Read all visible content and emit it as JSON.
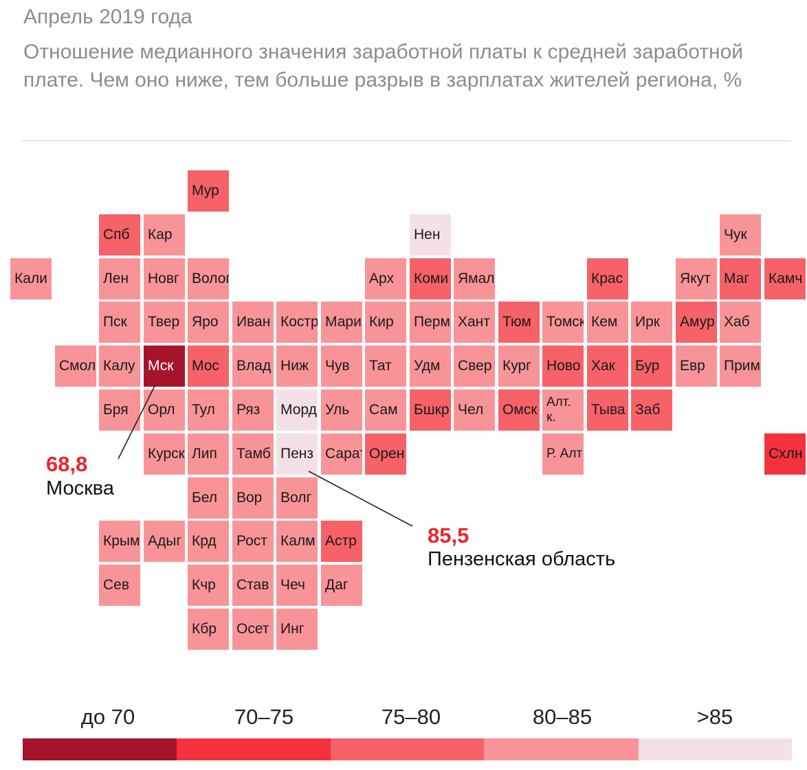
{
  "header": {
    "supertitle": "Апрель 2019 года",
    "subtitle": "Отношение медианного значения заработной платы к средней заработной плате. Чем оно ниже, тем больше разрыв в зарплатах жителей региона, %"
  },
  "colors": {
    "do70": "#a8132c",
    "r70_75": "#f5323c",
    "r75_80": "#f66268",
    "r80_85": "#f89498",
    "gt85": "#f4e1e6"
  },
  "map": {
    "regions": [
      {
        "label": "Мур",
        "col": 4,
        "row": 0,
        "cls": "r75_80"
      },
      {
        "label": "Спб",
        "col": 2,
        "row": 1,
        "cls": "r75_80"
      },
      {
        "label": "Кар",
        "col": 3,
        "row": 1,
        "cls": "r80_85"
      },
      {
        "label": "Нен",
        "col": 9,
        "row": 1,
        "cls": "gt85"
      },
      {
        "label": "Чук",
        "col": 16,
        "row": 1,
        "cls": "r80_85"
      },
      {
        "label": "Кали",
        "col": 0,
        "row": 2,
        "cls": "r80_85"
      },
      {
        "label": "Лен",
        "col": 2,
        "row": 2,
        "cls": "r80_85"
      },
      {
        "label": "Новг",
        "col": 3,
        "row": 2,
        "cls": "r80_85"
      },
      {
        "label": "Волог",
        "col": 4,
        "row": 2,
        "cls": "r80_85"
      },
      {
        "label": "Арх",
        "col": 8,
        "row": 2,
        "cls": "r80_85"
      },
      {
        "label": "Коми",
        "col": 9,
        "row": 2,
        "cls": "r75_80"
      },
      {
        "label": "Ямал",
        "col": 10,
        "row": 2,
        "cls": "r80_85"
      },
      {
        "label": "Крас",
        "col": 13,
        "row": 2,
        "cls": "r75_80"
      },
      {
        "label": "Якут",
        "col": 15,
        "row": 2,
        "cls": "r80_85"
      },
      {
        "label": "Маг",
        "col": 16,
        "row": 2,
        "cls": "r75_80"
      },
      {
        "label": "Камч",
        "col": 17,
        "row": 2,
        "cls": "r75_80"
      },
      {
        "label": "Пск",
        "col": 2,
        "row": 3,
        "cls": "r80_85"
      },
      {
        "label": "Твер",
        "col": 3,
        "row": 3,
        "cls": "r80_85"
      },
      {
        "label": "Яро",
        "col": 4,
        "row": 3,
        "cls": "r80_85"
      },
      {
        "label": "Иван",
        "col": 5,
        "row": 3,
        "cls": "r80_85"
      },
      {
        "label": "Костр",
        "col": 6,
        "row": 3,
        "cls": "r80_85"
      },
      {
        "label": "Мари",
        "col": 7,
        "row": 3,
        "cls": "r80_85"
      },
      {
        "label": "Кир",
        "col": 8,
        "row": 3,
        "cls": "r80_85"
      },
      {
        "label": "Перм",
        "col": 9,
        "row": 3,
        "cls": "r80_85"
      },
      {
        "label": "Хант",
        "col": 10,
        "row": 3,
        "cls": "r80_85"
      },
      {
        "label": "Тюм",
        "col": 11,
        "row": 3,
        "cls": "r75_80"
      },
      {
        "label": "Томск",
        "col": 12,
        "row": 3,
        "cls": "r80_85"
      },
      {
        "label": "Кем",
        "col": 13,
        "row": 3,
        "cls": "r80_85"
      },
      {
        "label": "Ирк",
        "col": 14,
        "row": 3,
        "cls": "r80_85"
      },
      {
        "label": "Амур",
        "col": 15,
        "row": 3,
        "cls": "r75_80"
      },
      {
        "label": "Хаб",
        "col": 16,
        "row": 3,
        "cls": "r80_85"
      },
      {
        "label": "Смол",
        "col": 1,
        "row": 4,
        "cls": "r80_85"
      },
      {
        "label": "Калу",
        "col": 2,
        "row": 4,
        "cls": "r80_85"
      },
      {
        "label": "Мск",
        "col": 3,
        "row": 4,
        "cls": "do70"
      },
      {
        "label": "Мос",
        "col": 4,
        "row": 4,
        "cls": "r75_80"
      },
      {
        "label": "Влад",
        "col": 5,
        "row": 4,
        "cls": "r80_85"
      },
      {
        "label": "Ниж",
        "col": 6,
        "row": 4,
        "cls": "r80_85"
      },
      {
        "label": "Чув",
        "col": 7,
        "row": 4,
        "cls": "r80_85"
      },
      {
        "label": "Тат",
        "col": 8,
        "row": 4,
        "cls": "r80_85"
      },
      {
        "label": "Удм",
        "col": 9,
        "row": 4,
        "cls": "r80_85"
      },
      {
        "label": "Свер",
        "col": 10,
        "row": 4,
        "cls": "r80_85"
      },
      {
        "label": "Кург",
        "col": 11,
        "row": 4,
        "cls": "r80_85"
      },
      {
        "label": "Ново",
        "col": 12,
        "row": 4,
        "cls": "r75_80"
      },
      {
        "label": "Хак",
        "col": 13,
        "row": 4,
        "cls": "r75_80"
      },
      {
        "label": "Бур",
        "col": 14,
        "row": 4,
        "cls": "r75_80"
      },
      {
        "label": "Евр",
        "col": 15,
        "row": 4,
        "cls": "r80_85"
      },
      {
        "label": "Прим",
        "col": 16,
        "row": 4,
        "cls": "r80_85"
      },
      {
        "label": "Бря",
        "col": 2,
        "row": 5,
        "cls": "r80_85"
      },
      {
        "label": "Орл",
        "col": 3,
        "row": 5,
        "cls": "r80_85"
      },
      {
        "label": "Тул",
        "col": 4,
        "row": 5,
        "cls": "r80_85"
      },
      {
        "label": "Ряз",
        "col": 5,
        "row": 5,
        "cls": "r80_85"
      },
      {
        "label": "Морд",
        "col": 6,
        "row": 5,
        "cls": "gt85"
      },
      {
        "label": "Уль",
        "col": 7,
        "row": 5,
        "cls": "r80_85"
      },
      {
        "label": "Сам",
        "col": 8,
        "row": 5,
        "cls": "r80_85"
      },
      {
        "label": "Бшкр",
        "col": 9,
        "row": 5,
        "cls": "r75_80"
      },
      {
        "label": "Чел",
        "col": 10,
        "row": 5,
        "cls": "r80_85"
      },
      {
        "label": "Омск",
        "col": 11,
        "row": 5,
        "cls": "r75_80"
      },
      {
        "label": "Алт. к.",
        "col": 12,
        "row": 5,
        "cls": "r80_85",
        "small": true
      },
      {
        "label": "Тыва",
        "col": 13,
        "row": 5,
        "cls": "r75_80"
      },
      {
        "label": "Заб",
        "col": 14,
        "row": 5,
        "cls": "r75_80"
      },
      {
        "label": "Курск",
        "col": 3,
        "row": 6,
        "cls": "r80_85"
      },
      {
        "label": "Лип",
        "col": 4,
        "row": 6,
        "cls": "r80_85"
      },
      {
        "label": "Тамб",
        "col": 5,
        "row": 6,
        "cls": "r80_85"
      },
      {
        "label": "Пенз",
        "col": 6,
        "row": 6,
        "cls": "gt85"
      },
      {
        "label": "Сарат",
        "col": 7,
        "row": 6,
        "cls": "r80_85"
      },
      {
        "label": "Орен",
        "col": 8,
        "row": 6,
        "cls": "r75_80"
      },
      {
        "label": "Р. Алт",
        "col": 12,
        "row": 6,
        "cls": "r80_85",
        "small": true
      },
      {
        "label": "Схлн",
        "col": 17,
        "row": 6,
        "cls": "r70_75"
      },
      {
        "label": "Бел",
        "col": 4,
        "row": 7,
        "cls": "r80_85"
      },
      {
        "label": "Вор",
        "col": 5,
        "row": 7,
        "cls": "r80_85"
      },
      {
        "label": "Волг",
        "col": 6,
        "row": 7,
        "cls": "r80_85"
      },
      {
        "label": "Крым",
        "col": 2,
        "row": 8,
        "cls": "r80_85"
      },
      {
        "label": "Адыг",
        "col": 3,
        "row": 8,
        "cls": "r80_85"
      },
      {
        "label": "Крд",
        "col": 4,
        "row": 8,
        "cls": "r80_85"
      },
      {
        "label": "Рост",
        "col": 5,
        "row": 8,
        "cls": "r80_85"
      },
      {
        "label": "Калм",
        "col": 6,
        "row": 8,
        "cls": "r80_85"
      },
      {
        "label": "Астр",
        "col": 7,
        "row": 8,
        "cls": "r75_80"
      },
      {
        "label": "Сев",
        "col": 2,
        "row": 9,
        "cls": "r80_85"
      },
      {
        "label": "Кчр",
        "col": 4,
        "row": 9,
        "cls": "r80_85"
      },
      {
        "label": "Став",
        "col": 5,
        "row": 9,
        "cls": "r80_85"
      },
      {
        "label": "Чеч",
        "col": 6,
        "row": 9,
        "cls": "r80_85"
      },
      {
        "label": "Даг",
        "col": 7,
        "row": 9,
        "cls": "r80_85"
      },
      {
        "label": "Кбр",
        "col": 4,
        "row": 10,
        "cls": "r80_85"
      },
      {
        "label": "Осет",
        "col": 5,
        "row": 10,
        "cls": "r80_85"
      },
      {
        "label": "Инг",
        "col": 6,
        "row": 10,
        "cls": "r80_85"
      }
    ]
  },
  "callouts": {
    "moscow": {
      "value": "68,8",
      "name": "Москва"
    },
    "penza": {
      "value": "85,5",
      "name": "Пензенская область"
    }
  },
  "legend": {
    "items": [
      {
        "label": "до 70",
        "cls": "do70"
      },
      {
        "label": "70–75",
        "cls": "r70_75"
      },
      {
        "label": "75–80",
        "cls": "r75_80"
      },
      {
        "label": "80–85",
        "cls": "r80_85"
      },
      {
        "label": ">85",
        "cls": "gt85"
      }
    ]
  }
}
